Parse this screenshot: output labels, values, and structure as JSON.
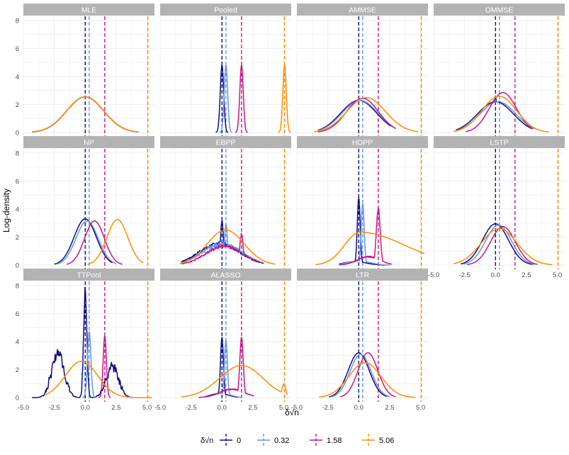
{
  "chart_data": {
    "type": "line",
    "title": "",
    "xlabel": "δ√n",
    "ylabel": "Log-density",
    "xlim": [
      -5.0,
      5.6
    ],
    "ylim": [
      -0.3,
      8.3
    ],
    "x_ticks": [
      -5.0,
      -2.5,
      0.0,
      2.5,
      5.0
    ],
    "x_tick_labels": [
      "-5.0",
      "-2.5",
      "0.0",
      "2.5",
      "5.0"
    ],
    "y_ticks": [
      0,
      2,
      4,
      6,
      8
    ],
    "y_tick_labels": [
      "0",
      "2",
      "4",
      "6",
      "8"
    ],
    "grid": true,
    "legend": {
      "placement": "bottom",
      "title": "δ√n",
      "entries": [
        {
          "label": "0",
          "value": 0.0,
          "color": "#0d0d80"
        },
        {
          "label": "0.32",
          "value": 0.32,
          "color": "#6495ed"
        },
        {
          "label": "1.58",
          "value": 1.58,
          "color": "#c71585"
        },
        {
          "label": "5.06",
          "value": 5.06,
          "color": "#ff8c00"
        }
      ]
    },
    "colors": {
      "strip_bg": "#b3b3b3",
      "strip_text": "#ffffff",
      "grid": "#ebebeb",
      "axis_text": "#4d4d4d"
    },
    "panels": [
      {
        "title": "MLE",
        "series": [
          {
            "name": "0",
            "curve": {
              "kind": "gauss",
              "c": 0.0,
              "w": 1.5,
              "h": 2.55,
              "xmin": -4.3,
              "xmax": 4.3
            }
          },
          {
            "name": "0.32",
            "curve": {
              "kind": "gauss",
              "c": 0.0,
              "w": 1.5,
              "h": 2.55,
              "xmin": -4.3,
              "xmax": 4.3
            }
          },
          {
            "name": "1.58",
            "curve": {
              "kind": "gauss",
              "c": 0.0,
              "w": 1.5,
              "h": 2.55,
              "xmin": -4.3,
              "xmax": 4.3
            }
          },
          {
            "name": "5.06",
            "curve": {
              "kind": "gauss",
              "c": 0.0,
              "w": 1.5,
              "h": 2.55,
              "xmin": -4.3,
              "xmax": 4.3
            }
          }
        ]
      },
      {
        "title": "Pooled",
        "series": [
          {
            "name": "0",
            "curve": {
              "kind": "gauss",
              "c": 0.0,
              "w": 0.14,
              "h": 4.8,
              "xmin": -0.5,
              "xmax": 0.5
            }
          },
          {
            "name": "0.32",
            "curve": {
              "kind": "gauss",
              "c": 0.32,
              "w": 0.14,
              "h": 4.8,
              "xmin": -0.18,
              "xmax": 0.82
            }
          },
          {
            "name": "1.58",
            "curve": {
              "kind": "gauss",
              "c": 1.58,
              "w": 0.14,
              "h": 4.8,
              "xmin": 1.08,
              "xmax": 2.08
            }
          },
          {
            "name": "5.06",
            "curve": {
              "kind": "gauss",
              "c": 5.06,
              "w": 0.14,
              "h": 4.8,
              "xmin": 4.56,
              "xmax": 5.56
            }
          }
        ]
      },
      {
        "title": "AMMSE",
        "series": [
          {
            "name": "0",
            "curve": {
              "kind": "mix",
              "parts": [
                {
                  "c": 0.0,
                  "w": 1.45,
                  "h": 2.3
                },
                {
                  "c": 0.0,
                  "w": 0.17,
                  "h": 1.6
                }
              ],
              "xmin": -3.3,
              "xmax": 2.6
            }
          },
          {
            "name": "0.32",
            "curve": {
              "kind": "mix",
              "parts": [
                {
                  "c": 0.1,
                  "w": 1.45,
                  "h": 2.3
                },
                {
                  "c": 0.32,
                  "w": 0.17,
                  "h": 1.6
                }
              ],
              "xmin": -3.3,
              "xmax": 2.8
            }
          },
          {
            "name": "1.58",
            "curve": {
              "kind": "mix",
              "parts": [
                {
                  "c": 0.3,
                  "w": 1.3,
                  "h": 2.45
                },
                {
                  "c": 1.58,
                  "w": 0.13,
                  "h": 1.0
                }
              ],
              "xmin": -3.3,
              "xmax": 3.0
            }
          },
          {
            "name": "5.06",
            "curve": {
              "kind": "gauss",
              "c": 0.6,
              "w": 1.55,
              "h": 2.5,
              "xmin": -3.6,
              "xmax": 4.8
            }
          }
        ]
      },
      {
        "title": "OMMSE",
        "series": [
          {
            "name": "0",
            "curve": {
              "kind": "mix",
              "parts": [
                {
                  "c": 0.0,
                  "w": 1.45,
                  "h": 2.2
                },
                {
                  "c": 0.0,
                  "w": 0.12,
                  "h": 2.6
                }
              ],
              "xmin": -3.2,
              "xmax": 3.0
            }
          },
          {
            "name": "0.32",
            "curve": {
              "kind": "mix",
              "parts": [
                {
                  "c": 0.2,
                  "w": 1.45,
                  "h": 2.2
                },
                {
                  "c": 0.32,
                  "w": 0.12,
                  "h": 2.3
                }
              ],
              "xmin": -3.2,
              "xmax": 3.2
            }
          },
          {
            "name": "1.58",
            "curve": {
              "kind": "gauss",
              "c": 0.6,
              "w": 1.1,
              "h": 2.85,
              "xmin": -2.4,
              "xmax": 3.0
            }
          },
          {
            "name": "5.06",
            "curve": {
              "kind": "gauss",
              "c": 0.3,
              "w": 1.4,
              "h": 2.6,
              "xmin": -3.4,
              "xmax": 4.3
            }
          }
        ]
      },
      {
        "title": "NP",
        "series": [
          {
            "name": "0",
            "curve": {
              "kind": "gauss",
              "c": 0.0,
              "w": 0.9,
              "h": 3.3,
              "xmin": -2.5,
              "xmax": 2.2
            }
          },
          {
            "name": "0.32",
            "curve": {
              "kind": "gauss",
              "c": 0.15,
              "w": 0.9,
              "h": 3.15,
              "xmin": -2.3,
              "xmax": 2.5
            }
          },
          {
            "name": "1.58",
            "curve": {
              "kind": "gauss",
              "c": 0.75,
              "w": 0.8,
              "h": 3.15,
              "xmin": -1.5,
              "xmax": 3.0
            }
          },
          {
            "name": "5.06",
            "curve": {
              "kind": "gauss",
              "c": 2.6,
              "w": 0.85,
              "h": 3.25,
              "xmin": 0.2,
              "xmax": 4.7
            }
          }
        ]
      },
      {
        "title": "EBPP",
        "series": [
          {
            "name": "0",
            "curve": {
              "kind": "mix",
              "parts": [
                {
                  "c": -0.2,
                  "w": 1.6,
                  "h": 1.55
                },
                {
                  "c": 0.0,
                  "w": 0.12,
                  "h": 3.1
                }
              ],
              "xmin": -3.3,
              "xmax": 3.4
            },
            "noise": 0.12
          },
          {
            "name": "0.32",
            "curve": {
              "kind": "mix",
              "parts": [
                {
                  "c": 0.0,
                  "w": 1.6,
                  "h": 1.5
                },
                {
                  "c": 0.32,
                  "w": 0.12,
                  "h": 2.9
                }
              ],
              "xmin": -3.3,
              "xmax": 3.4
            },
            "noise": 0.12
          },
          {
            "name": "1.58",
            "curve": {
              "kind": "mix",
              "parts": [
                {
                  "c": 0.2,
                  "w": 1.5,
                  "h": 1.35
                },
                {
                  "c": 1.58,
                  "w": 0.14,
                  "h": 2.2
                }
              ],
              "xmin": -3.3,
              "xmax": 3.0
            },
            "noise": 0.12
          },
          {
            "name": "5.06",
            "curve": {
              "kind": "gauss",
              "c": 0.3,
              "w": 1.5,
              "h": 2.5,
              "xmin": -3.4,
              "xmax": 4.3
            }
          }
        ]
      },
      {
        "title": "HDPP",
        "series": [
          {
            "name": "0",
            "curve": {
              "kind": "mix",
              "parts": [
                {
                  "c": 0.0,
                  "w": 0.12,
                  "h": 4.8
                },
                {
                  "c": -0.3,
                  "w": 0.9,
                  "h": 0.25
                }
              ],
              "xmin": -1.6,
              "xmax": 2.2
            }
          },
          {
            "name": "0.32",
            "curve": {
              "kind": "mix",
              "parts": [
                {
                  "c": 0.32,
                  "w": 0.12,
                  "h": 4.4
                },
                {
                  "c": 0.0,
                  "w": 0.9,
                  "h": 0.3
                }
              ],
              "xmin": -1.6,
              "xmax": 2.5
            }
          },
          {
            "name": "1.58",
            "curve": {
              "kind": "mix",
              "parts": [
                {
                  "c": 1.58,
                  "w": 0.16,
                  "h": 4.0
                },
                {
                  "c": 0.8,
                  "w": 0.9,
                  "h": 0.6
                }
              ],
              "xmin": -1.6,
              "xmax": 2.7
            },
            "noise": 0.08
          },
          {
            "name": "5.06",
            "curve": {
              "kind": "skew",
              "c": 0.1,
              "wl": 1.25,
              "wr": 3.6,
              "h": 2.35,
              "xmin": -3.5,
              "xmax": 5.3,
              "tail": 0.8
            }
          }
        ]
      },
      {
        "title": "LSTP",
        "series": [
          {
            "name": "0",
            "curve": {
              "kind": "gauss",
              "c": 0.0,
              "w": 1.05,
              "h": 2.95,
              "xmin": -2.8,
              "xmax": 3.0
            }
          },
          {
            "name": "0.32",
            "curve": {
              "kind": "gauss",
              "c": 0.25,
              "w": 1.05,
              "h": 2.85,
              "xmin": -2.6,
              "xmax": 3.2
            }
          },
          {
            "name": "1.58",
            "curve": {
              "kind": "gauss",
              "c": 0.6,
              "w": 1.0,
              "h": 2.75,
              "xmin": -2.3,
              "xmax": 3.4
            }
          },
          {
            "name": "5.06",
            "curve": {
              "kind": "gauss",
              "c": 0.3,
              "w": 1.45,
              "h": 2.6,
              "xmin": -3.4,
              "xmax": 4.6
            }
          }
        ]
      },
      {
        "title": "TTPool",
        "series": [
          {
            "name": "0",
            "curve": {
              "kind": "mix",
              "parts": [
                {
                  "c": -2.2,
                  "w": 0.5,
                  "h": 3.2
                },
                {
                  "c": 0.0,
                  "w": 0.13,
                  "h": 7.6
                },
                {
                  "c": 2.2,
                  "w": 0.5,
                  "h": 2.2
                }
              ],
              "xmin": -4.3,
              "xmax": 3.9
            },
            "noise": 0.35
          },
          {
            "name": "0.32",
            "curve": {
              "kind": "gauss",
              "c": 0.32,
              "w": 0.14,
              "h": 4.7,
              "xmin": -0.2,
              "xmax": 0.85
            }
          },
          {
            "name": "1.58",
            "curve": {
              "kind": "gauss",
              "c": 1.58,
              "w": 0.13,
              "h": 4.4,
              "xmin": 1.1,
              "xmax": 2.05
            }
          },
          {
            "name": "5.06",
            "curve": {
              "kind": "gauss",
              "c": -0.3,
              "w": 1.3,
              "h": 2.6,
              "xmin": -3.3,
              "xmax": 5.4
            }
          }
        ]
      },
      {
        "title": "ALASSO",
        "series": [
          {
            "name": "0",
            "curve": {
              "kind": "mix",
              "parts": [
                {
                  "c": 0.0,
                  "w": 0.12,
                  "h": 4.3
                },
                {
                  "c": -0.2,
                  "w": 0.7,
                  "h": 0.3
                }
              ],
              "xmin": -1.4,
              "xmax": 1.3
            }
          },
          {
            "name": "0.32",
            "curve": {
              "kind": "mix",
              "parts": [
                {
                  "c": 0.32,
                  "w": 0.12,
                  "h": 4.1
                },
                {
                  "c": 0.0,
                  "w": 0.7,
                  "h": 0.3
                }
              ],
              "xmin": -1.3,
              "xmax": 1.6
            }
          },
          {
            "name": "1.58",
            "curve": {
              "kind": "mix",
              "parts": [
                {
                  "c": 1.58,
                  "w": 0.14,
                  "h": 4.3
                },
                {
                  "c": 0.8,
                  "w": 1.0,
                  "h": 0.6
                }
              ],
              "xmin": -1.9,
              "xmax": 2.6
            },
            "noise": 0.08
          },
          {
            "name": "5.06",
            "curve": {
              "kind": "skew",
              "c": 1.6,
              "wl": 1.8,
              "wr": 1.7,
              "h": 2.3,
              "xmin": -3.3,
              "xmax": 5.3,
              "bump": {
                "c": 5.0,
                "w": 0.15,
                "h": 1.0
              }
            }
          }
        ]
      },
      {
        "title": "LTR",
        "series": [
          {
            "name": "0",
            "curve": {
              "kind": "gauss",
              "c": 0.0,
              "w": 0.85,
              "h": 3.2,
              "xmin": -2.4,
              "xmax": 2.3
            }
          },
          {
            "name": "0.32",
            "curve": {
              "kind": "gauss",
              "c": 0.15,
              "w": 0.85,
              "h": 3.1,
              "xmin": -2.3,
              "xmax": 2.5
            }
          },
          {
            "name": "1.58",
            "curve": {
              "kind": "gauss",
              "c": 0.75,
              "w": 0.8,
              "h": 3.2,
              "xmin": -1.5,
              "xmax": 3.0
            }
          },
          {
            "name": "5.06",
            "curve": {
              "kind": "gauss",
              "c": 0.5,
              "w": 1.3,
              "h": 2.5,
              "xmin": -3.2,
              "xmax": 4.6
            }
          }
        ]
      }
    ]
  }
}
